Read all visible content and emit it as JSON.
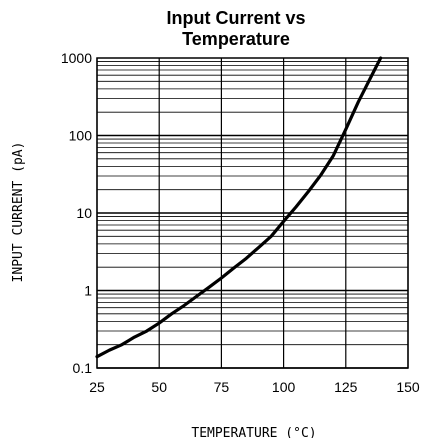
{
  "chart_data": {
    "type": "line",
    "title": "Input Current vs",
    "subtitle": "Temperature",
    "xlabel": "TEMPERATURE (°C)",
    "ylabel": "INPUT CURRENT (pA)",
    "xlim": [
      25,
      150
    ],
    "ylim": [
      0.1,
      1000
    ],
    "yscale": "log",
    "grid": true,
    "x_ticks": [
      25,
      50,
      75,
      100,
      125,
      150
    ],
    "x_tick_labels": [
      "25",
      "50",
      "75",
      "100",
      "125",
      "150"
    ],
    "y_ticks": [
      0.1,
      1,
      10,
      100,
      1000
    ],
    "y_tick_labels": [
      "0.1",
      "1",
      "10",
      "100",
      "1000"
    ],
    "series": [
      {
        "x": [
          25,
          30,
          35,
          40,
          45,
          50,
          55,
          60,
          65,
          70,
          75,
          80,
          85,
          90,
          95,
          100,
          105,
          110,
          115,
          120,
          125,
          130,
          135,
          139
        ],
        "y": [
          0.14,
          0.17,
          0.2,
          0.25,
          0.3,
          0.38,
          0.5,
          0.64,
          0.84,
          1.1,
          1.45,
          1.95,
          2.6,
          3.6,
          5.0,
          7.8,
          12,
          19,
          31,
          55,
          120,
          270,
          560,
          1000
        ]
      }
    ],
    "line_color": "#000000",
    "grid_color": "#000000"
  }
}
